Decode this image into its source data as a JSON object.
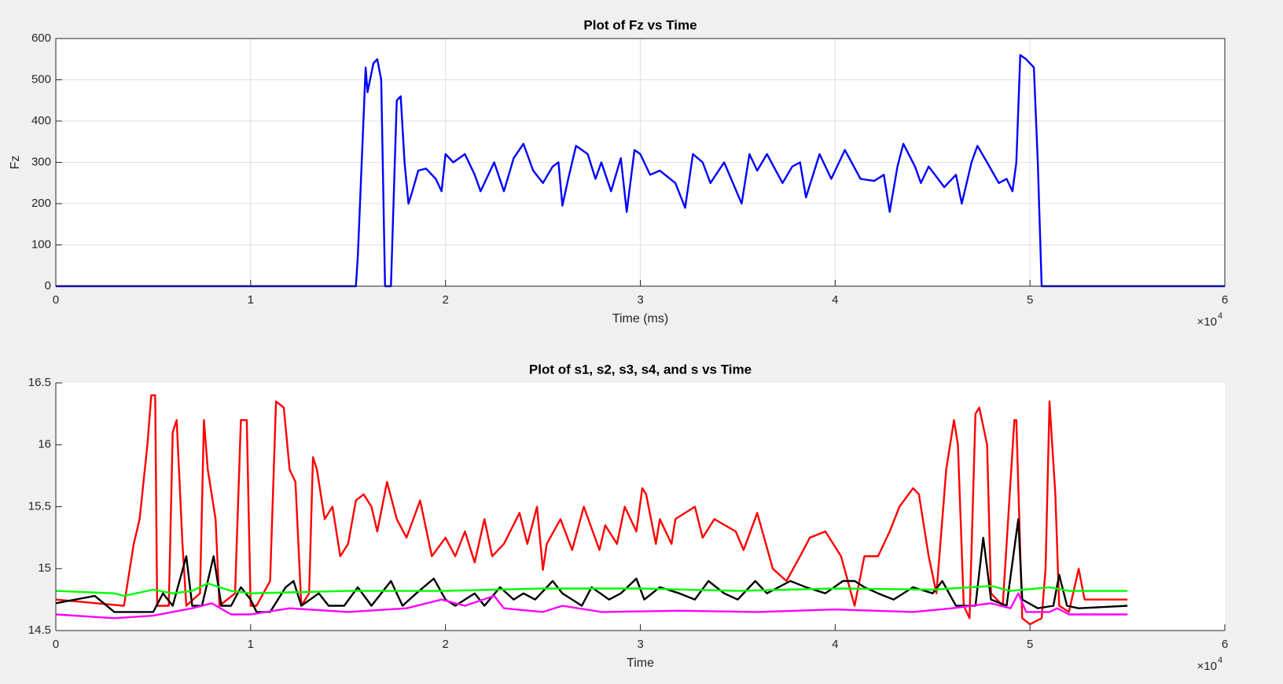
{
  "chart_data": [
    {
      "type": "line",
      "title": "Plot of Fz vs Time",
      "xlabel": "Time (ms)",
      "ylabel": "Fz",
      "grid": true,
      "x_exponent": {
        "base": "×10",
        "power": "4"
      },
      "xlim": [
        0,
        60000
      ],
      "xticks": [
        0,
        {
          "value": 10000,
          "label": "1"
        },
        {
          "value": 20000,
          "label": "2"
        },
        {
          "value": 30000,
          "label": "3"
        },
        {
          "value": 40000,
          "label": "4"
        },
        {
          "value": 50000,
          "label": "5"
        },
        {
          "value": 60000,
          "label": "6"
        }
      ],
      "ylim": [
        0,
        600
      ],
      "yticks": [
        0,
        100,
        200,
        300,
        400,
        500,
        600
      ],
      "series": [
        {
          "color": "#0000ff",
          "x": [
            0,
            15400,
            15500,
            15700,
            15900,
            16000,
            16300,
            16500,
            16700,
            16900,
            17200,
            17400,
            17500,
            17700,
            17900,
            18100,
            18300,
            18600,
            19000,
            19500,
            19800,
            20000,
            20400,
            21000,
            21500,
            21800,
            22500,
            23000,
            23500,
            24000,
            24500,
            25000,
            25500,
            25800,
            26000,
            26300,
            26700,
            27300,
            27700,
            28000,
            28500,
            29000,
            29300,
            29700,
            30000,
            30500,
            31000,
            31800,
            32300,
            32700,
            33200,
            33600,
            34300,
            35200,
            35600,
            36000,
            36500,
            37300,
            37800,
            38200,
            38500,
            39200,
            39800,
            40500,
            41300,
            42000,
            42500,
            42800,
            43200,
            43500,
            44100,
            44400,
            44800,
            45600,
            46200,
            46500,
            47000,
            47300,
            47800,
            48400,
            48800,
            49100,
            49300,
            49500,
            49800,
            50200,
            50400,
            50600,
            60000
          ],
          "values": [
            0,
            0,
            70,
            300,
            530,
            470,
            540,
            550,
            500,
            0,
            0,
            300,
            450,
            460,
            300,
            200,
            230,
            280,
            285,
            260,
            230,
            320,
            300,
            320,
            270,
            230,
            300,
            230,
            310,
            345,
            280,
            250,
            290,
            300,
            195,
            260,
            340,
            320,
            260,
            300,
            230,
            310,
            180,
            330,
            320,
            270,
            280,
            250,
            190,
            320,
            300,
            250,
            300,
            200,
            320,
            280,
            320,
            250,
            290,
            300,
            215,
            320,
            260,
            330,
            260,
            255,
            270,
            180,
            290,
            345,
            290,
            250,
            290,
            240,
            270,
            200,
            300,
            340,
            300,
            250,
            260,
            230,
            300,
            560,
            550,
            530,
            300,
            0,
            0
          ]
        }
      ]
    },
    {
      "type": "line",
      "title": "Plot of s1, s2, s3, s4, and s vs Time",
      "xlabel": "Time",
      "grid": false,
      "x_exponent": {
        "base": "×10",
        "power": "4"
      },
      "xlim": [
        0,
        60000
      ],
      "xticks": [
        0,
        {
          "value": 10000,
          "label": "1"
        },
        {
          "value": 20000,
          "label": "2"
        },
        {
          "value": 30000,
          "label": "3"
        },
        {
          "value": 40000,
          "label": "4"
        },
        {
          "value": 50000,
          "label": "5"
        },
        {
          "value": 60000,
          "label": "6"
        }
      ],
      "ylim": [
        14.5,
        16.5
      ],
      "yticks": [
        14.5,
        15,
        15.5,
        16,
        16.5
      ],
      "series": [
        {
          "color": "#ff0000",
          "x": [
            0,
            3500,
            4000,
            4300,
            4700,
            4900,
            5100,
            5200,
            5800,
            6000,
            6200,
            6500,
            6700,
            7400,
            7600,
            7800,
            8200,
            8400,
            9200,
            9500,
            9800,
            10000,
            10300,
            11000,
            11300,
            11700,
            12000,
            12300,
            12600,
            13000,
            13200,
            13400,
            13800,
            14200,
            14600,
            15000,
            15400,
            15800,
            16200,
            16500,
            17000,
            17500,
            18000,
            18700,
            19300,
            20000,
            20500,
            21000,
            21500,
            22000,
            22400,
            23000,
            23800,
            24200,
            24700,
            25000,
            25200,
            25900,
            26500,
            27100,
            27900,
            28200,
            28800,
            29200,
            29800,
            30100,
            30300,
            30800,
            31000,
            31600,
            31800,
            32800,
            33200,
            33800,
            34900,
            35300,
            36000,
            36800,
            37500,
            38200,
            38700,
            39500,
            40300,
            41000,
            41500,
            42200,
            42800,
            43300,
            44000,
            44300,
            44800,
            45200,
            45700,
            46100,
            46300,
            46600,
            46900,
            47200,
            47400,
            47800,
            48000,
            48600,
            49200,
            49300,
            49600,
            50000,
            50600,
            50800,
            51000,
            51300,
            51500,
            52000,
            52500,
            52800,
            55000
          ],
          "values": [
            14.75,
            14.7,
            15.2,
            15.4,
            16.0,
            16.4,
            16.4,
            14.7,
            14.7,
            16.1,
            16.2,
            15.2,
            14.7,
            14.8,
            16.2,
            15.8,
            15.4,
            14.7,
            14.8,
            16.2,
            16.2,
            14.7,
            14.7,
            14.9,
            16.35,
            16.3,
            15.8,
            15.7,
            14.7,
            14.8,
            15.9,
            15.8,
            15.4,
            15.5,
            15.1,
            15.2,
            15.55,
            15.6,
            15.5,
            15.3,
            15.7,
            15.4,
            15.25,
            15.55,
            15.1,
            15.25,
            15.1,
            15.3,
            15.05,
            15.4,
            15.1,
            15.2,
            15.45,
            15.2,
            15.5,
            14.99,
            15.2,
            15.4,
            15.15,
            15.5,
            15.15,
            15.35,
            15.2,
            15.5,
            15.3,
            15.65,
            15.6,
            15.2,
            15.4,
            15.2,
            15.4,
            15.5,
            15.25,
            15.4,
            15.3,
            15.15,
            15.45,
            15.0,
            14.9,
            15.1,
            15.25,
            15.3,
            15.1,
            14.7,
            15.1,
            15.1,
            15.3,
            15.5,
            15.65,
            15.6,
            15.1,
            14.8,
            15.8,
            16.2,
            16.0,
            14.7,
            14.6,
            16.25,
            16.3,
            16.0,
            14.8,
            14.7,
            16.2,
            16.2,
            14.6,
            14.55,
            14.6,
            15.0,
            16.35,
            15.6,
            14.7,
            14.65,
            15.0,
            14.75,
            14.75
          ]
        },
        {
          "color": "#000000",
          "x": [
            0,
            2000,
            3000,
            5000,
            5500,
            6000,
            6700,
            7000,
            7500,
            8100,
            8500,
            9000,
            9500,
            10000,
            10300,
            11000,
            11800,
            12200,
            12600,
            13500,
            14000,
            14800,
            15500,
            16200,
            17200,
            17800,
            18500,
            19400,
            20000,
            20500,
            21500,
            22000,
            22800,
            23500,
            24000,
            24600,
            25500,
            26000,
            27000,
            27500,
            28400,
            29000,
            29800,
            30200,
            31000,
            32000,
            32800,
            33500,
            34300,
            35000,
            35900,
            36500,
            37700,
            38500,
            39500,
            40400,
            41000,
            41500,
            42200,
            43000,
            44000,
            45000,
            45500,
            46200,
            47200,
            47600,
            48000,
            48800,
            49400,
            49600,
            50400,
            51200,
            51500,
            51900,
            52500,
            55000
          ],
          "values": [
            14.72,
            14.78,
            14.65,
            14.65,
            14.8,
            14.7,
            15.1,
            14.7,
            14.7,
            15.1,
            14.7,
            14.7,
            14.85,
            14.75,
            14.65,
            14.65,
            14.85,
            14.9,
            14.7,
            14.8,
            14.7,
            14.7,
            14.85,
            14.7,
            14.9,
            14.7,
            14.8,
            14.92,
            14.75,
            14.7,
            14.8,
            14.7,
            14.85,
            14.75,
            14.8,
            14.75,
            14.9,
            14.8,
            14.7,
            14.85,
            14.75,
            14.8,
            14.92,
            14.75,
            14.85,
            14.8,
            14.75,
            14.9,
            14.8,
            14.75,
            14.9,
            14.8,
            14.9,
            14.85,
            14.8,
            14.9,
            14.9,
            14.85,
            14.8,
            14.75,
            14.85,
            14.8,
            14.9,
            14.7,
            14.7,
            15.25,
            14.75,
            14.7,
            15.4,
            14.75,
            14.68,
            14.7,
            14.95,
            14.7,
            14.68,
            14.7
          ]
        },
        {
          "color": "#00ff00",
          "x": [
            0,
            3000,
            3500,
            5000,
            6000,
            7000,
            7800,
            9000,
            10000,
            15000,
            20000,
            25000,
            30000,
            35000,
            40000,
            45000,
            48000,
            49000,
            51000,
            52000,
            55000
          ],
          "values": [
            14.82,
            14.8,
            14.78,
            14.83,
            14.8,
            14.82,
            14.88,
            14.82,
            14.8,
            14.82,
            14.82,
            14.84,
            14.84,
            14.82,
            14.84,
            14.83,
            14.86,
            14.82,
            14.85,
            14.82,
            14.82
          ]
        },
        {
          "color": "#ff00ff",
          "x": [
            0,
            3000,
            5000,
            7000,
            8000,
            9000,
            10000,
            12000,
            15000,
            18000,
            19800,
            21000,
            22500,
            23000,
            25000,
            26000,
            28000,
            32000,
            36000,
            40000,
            44000,
            46000,
            48000,
            49000,
            49400,
            49800,
            51000,
            51400,
            52000,
            55000
          ],
          "values": [
            14.63,
            14.6,
            14.62,
            14.68,
            14.72,
            14.63,
            14.63,
            14.68,
            14.65,
            14.68,
            14.75,
            14.7,
            14.78,
            14.68,
            14.65,
            14.7,
            14.65,
            14.66,
            14.65,
            14.67,
            14.65,
            14.68,
            14.72,
            14.68,
            14.8,
            14.65,
            14.65,
            14.68,
            14.63,
            14.63
          ]
        }
      ]
    }
  ]
}
